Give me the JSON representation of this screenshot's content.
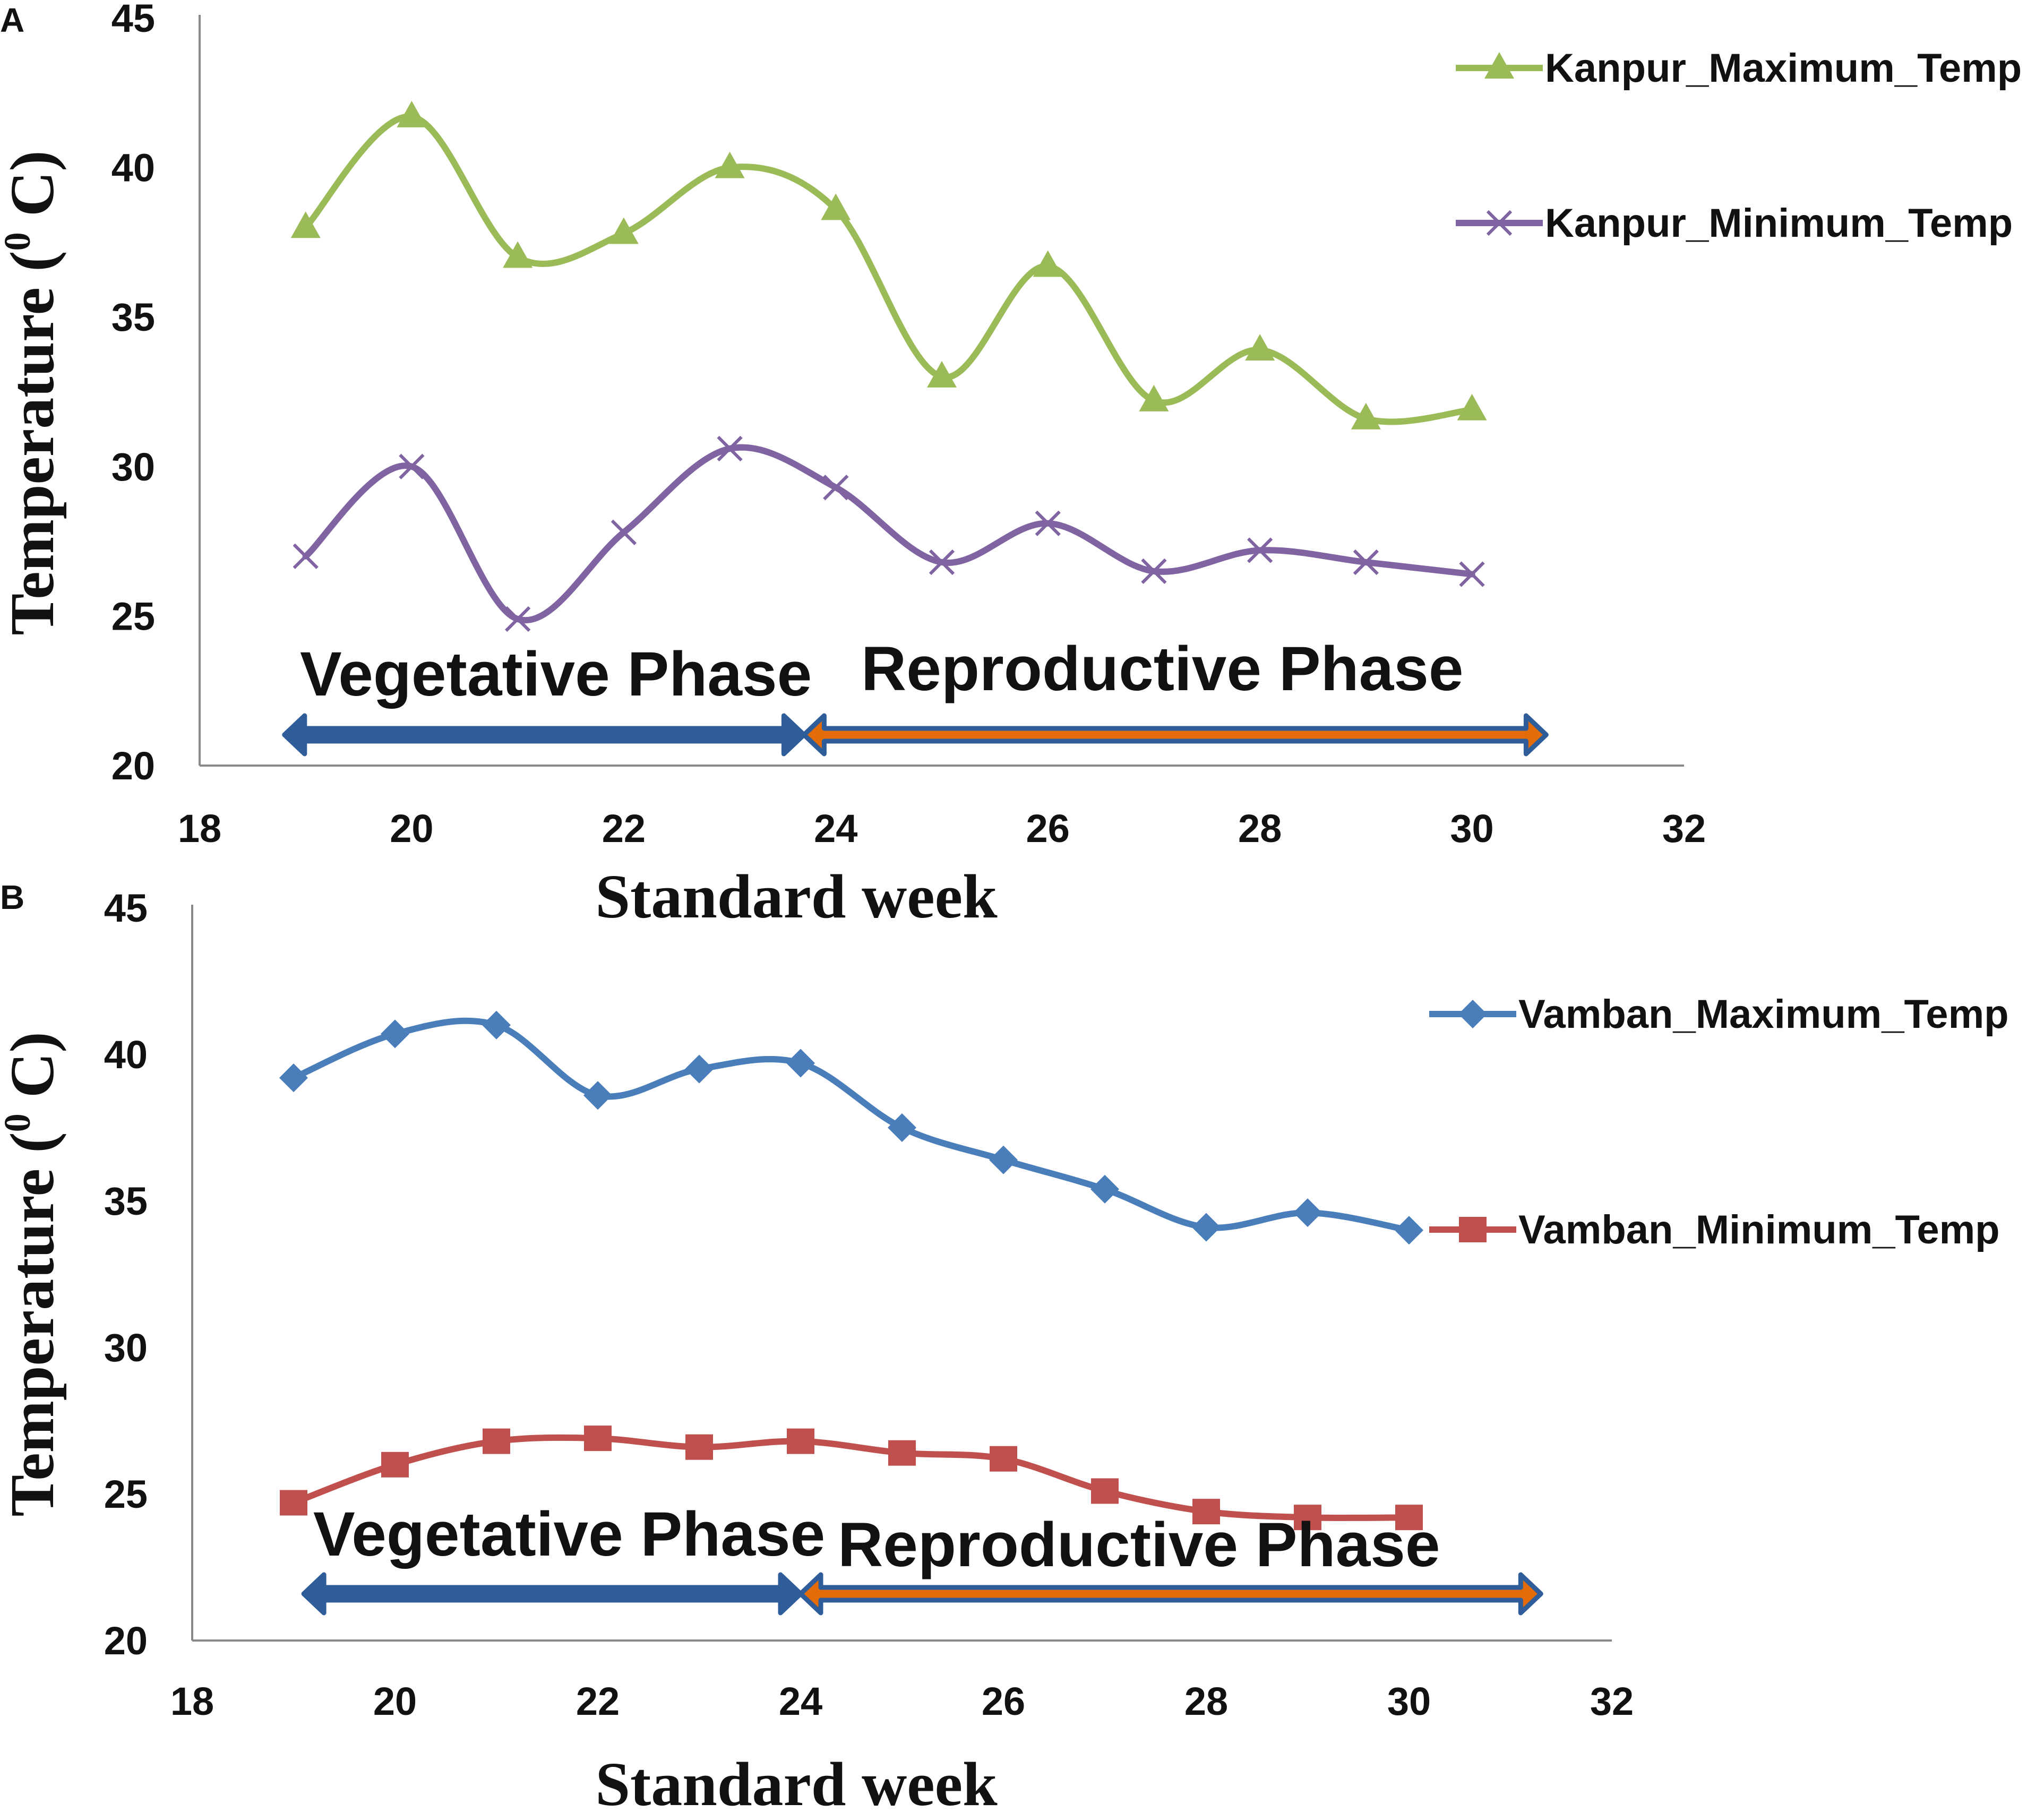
{
  "chart_data": [
    {
      "panel_label": "A",
      "type": "line",
      "xlabel": "Standard week",
      "ylabel": "Temperature (",
      "ylabel_sup": "0",
      "ylabel_unit": " C)",
      "xlim": [
        18,
        32
      ],
      "ylim": [
        20,
        45
      ],
      "xticks": [
        18,
        20,
        22,
        24,
        26,
        28,
        30,
        32
      ],
      "yticks": [
        20,
        25,
        30,
        35,
        40,
        45
      ],
      "x": [
        19,
        20,
        21,
        22,
        23,
        24,
        25,
        26,
        27,
        28,
        29,
        30
      ],
      "series": [
        {
          "name": "Kanpur_Maximum_Temp",
          "color": "#9bbb59",
          "marker": "triangle",
          "values": [
            38.0,
            41.7,
            37.0,
            37.8,
            40.0,
            38.6,
            33.0,
            36.7,
            32.2,
            33.9,
            31.6,
            31.9
          ]
        },
        {
          "name": "Kanpur_Minimum_Temp",
          "color": "#8064a2",
          "marker": "x",
          "values": [
            27.0,
            30.0,
            24.9,
            27.8,
            30.6,
            29.3,
            26.8,
            28.1,
            26.5,
            27.2,
            26.8,
            26.4
          ]
        }
      ],
      "phases": [
        {
          "label": "Vegetative Phase",
          "from": 18.8,
          "to": 23.7,
          "color": "#2e5d99"
        },
        {
          "label": "Reproductive Phase",
          "from": 23.7,
          "to": 30.7,
          "color": "#e36c09"
        }
      ]
    },
    {
      "panel_label": "B",
      "type": "line",
      "xlabel": "Standard week",
      "ylabel": "Temperature (",
      "ylabel_sup": "0",
      "ylabel_unit": " C)",
      "xlim": [
        18,
        32
      ],
      "ylim": [
        20,
        45
      ],
      "xticks": [
        18,
        20,
        22,
        24,
        26,
        28,
        30,
        32
      ],
      "yticks": [
        20,
        25,
        30,
        35,
        40,
        45
      ],
      "x": [
        19,
        20,
        21,
        22,
        23,
        24,
        25,
        26,
        27,
        28,
        29,
        30
      ],
      "series": [
        {
          "name": "Vamban_Maximum_Temp",
          "color": "#4a7ebb",
          "marker": "diamond",
          "values": [
            39.2,
            40.7,
            41.0,
            38.6,
            39.5,
            39.7,
            37.5,
            36.4,
            35.4,
            34.1,
            34.6,
            34.0
          ]
        },
        {
          "name": "Vamban_Minimum_Temp",
          "color": "#c0504d",
          "marker": "square",
          "values": [
            24.7,
            26.0,
            26.8,
            26.9,
            26.6,
            26.8,
            26.4,
            26.2,
            25.1,
            24.4,
            24.2,
            24.2
          ]
        }
      ],
      "phases": [
        {
          "label": "Vegetative Phase",
          "from": 19.1,
          "to": 24.0,
          "color": "#2e5d99"
        },
        {
          "label": "Reproductive Phase",
          "from": 24.0,
          "to": 31.3,
          "color": "#e36c09"
        }
      ]
    }
  ]
}
